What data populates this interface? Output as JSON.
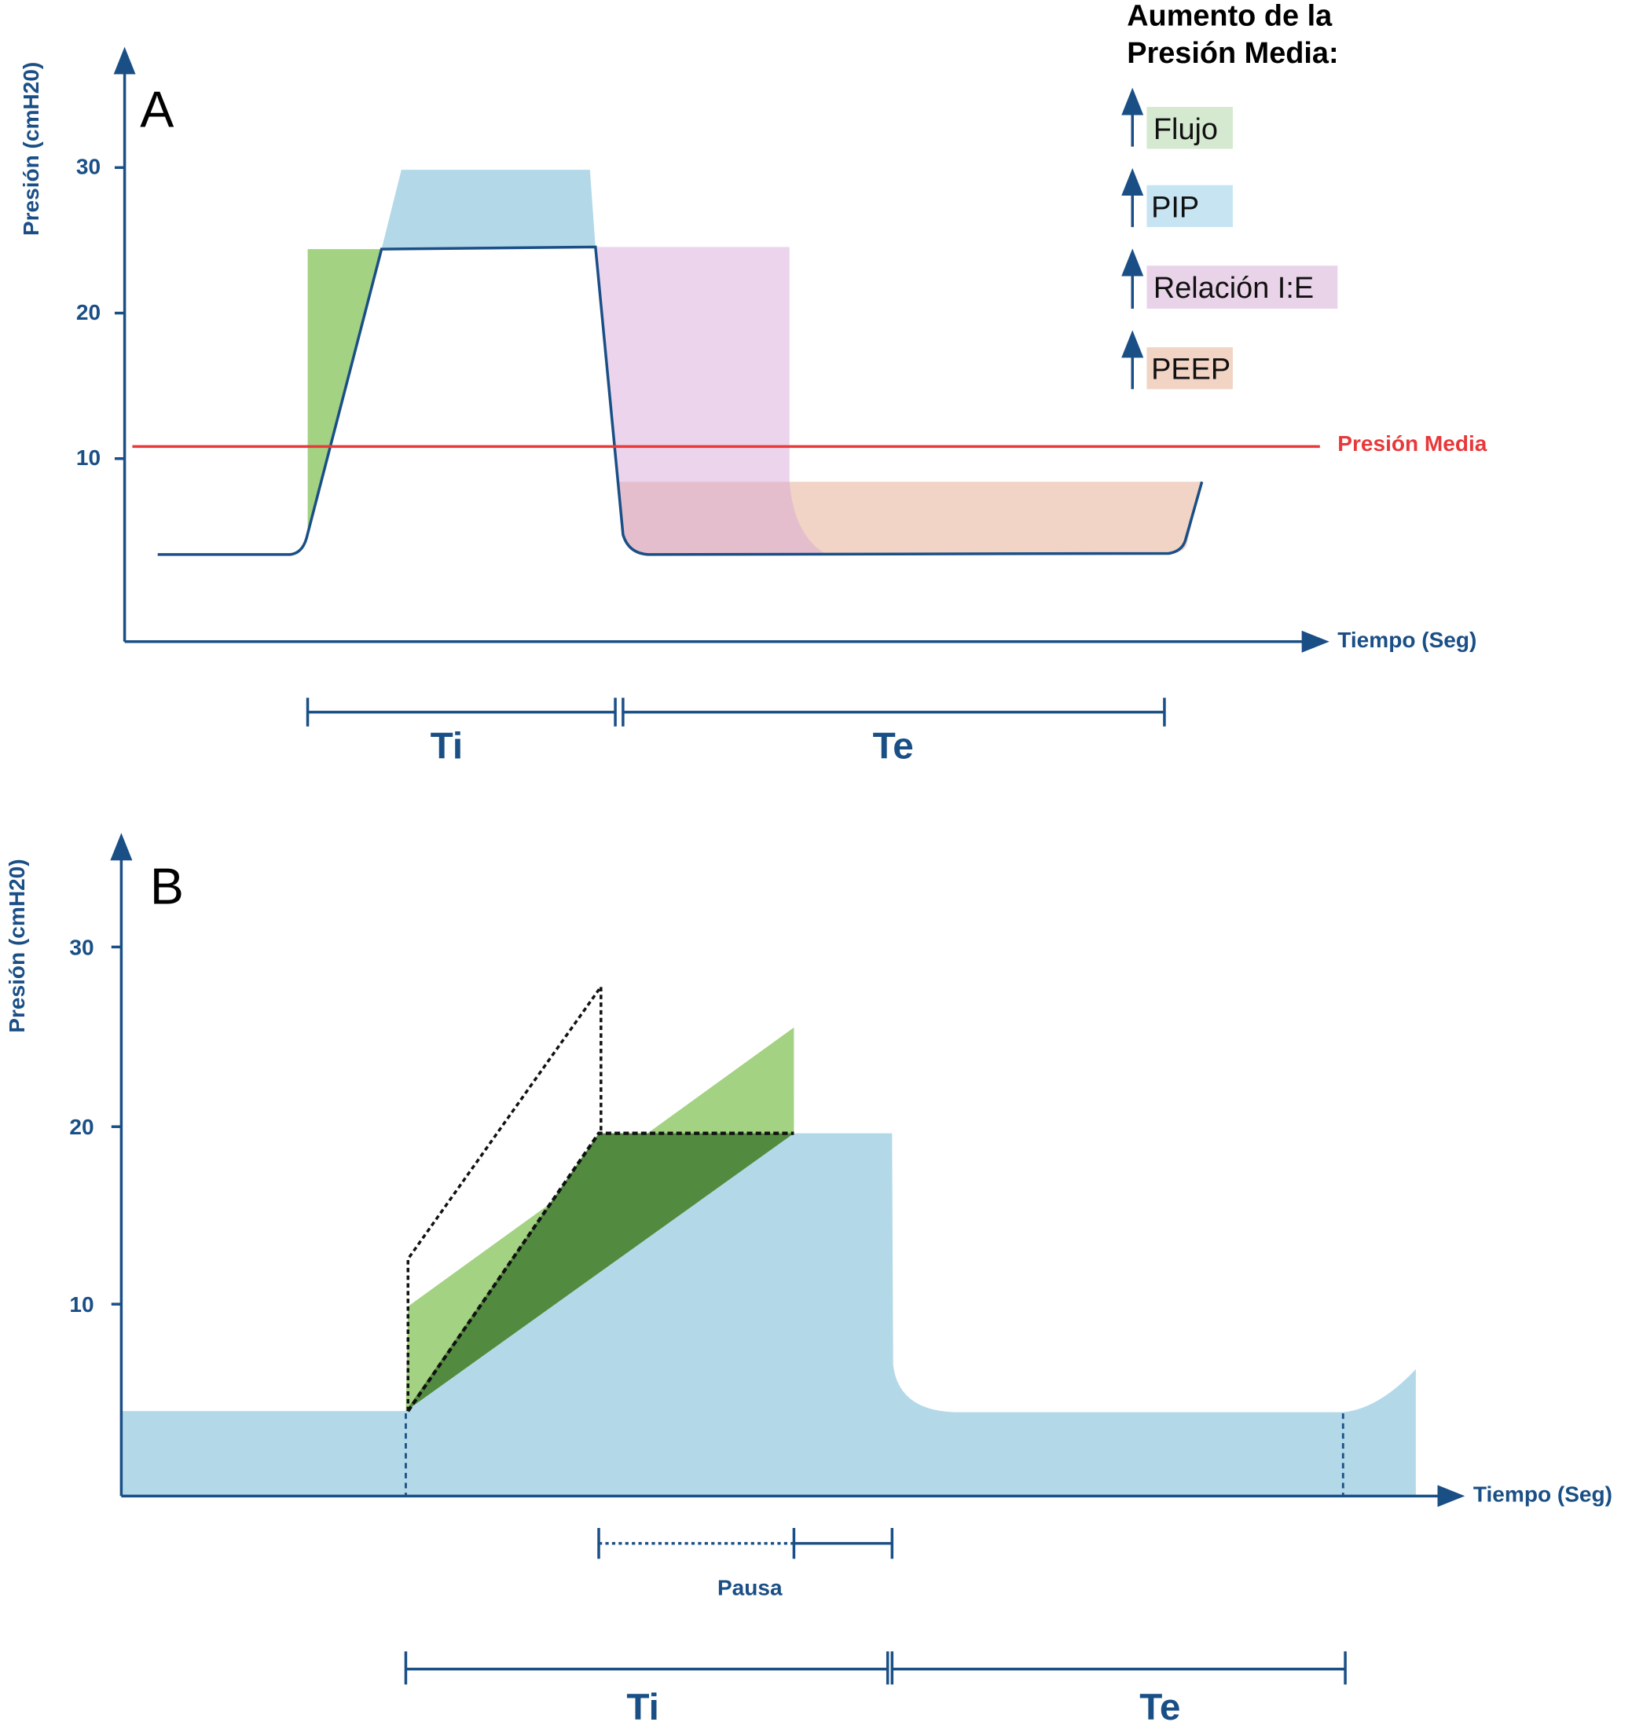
{
  "panel_a": {
    "label": "A",
    "y_axis_label": "Presión (cmH20)",
    "x_axis_label": "Tiempo (Seg)",
    "y_ticks": [
      "30",
      "20",
      "10"
    ],
    "mean_pressure_label": "Presión Media",
    "legend_title_line1": "Aumento de la",
    "legend_title_line2": "Presión Media:",
    "legend": [
      {
        "label": "Flujo",
        "color": "#d5e8d0"
      },
      {
        "label": "PIP",
        "color": "#c6e4f2"
      },
      {
        "label": "Relación I:E",
        "color": "#e8d3e8"
      },
      {
        "label": "PEEP",
        "color": "#f2d4c5"
      }
    ],
    "ti_label": "Ti",
    "te_label": "Te",
    "colors": {
      "axis": "#1a4f86",
      "mean_line": "#e8393a",
      "flow": "#a3d283",
      "pip": "#b3d9e9",
      "ie": "#e8d3e8",
      "peep": "#f1d4c5"
    }
  },
  "panel_b": {
    "label": "B",
    "y_axis_label": "Presión (cmH20)",
    "x_axis_label": "Tiempo (Seg)",
    "y_ticks": [
      "30",
      "20",
      "10"
    ],
    "pause_label": "Pausa",
    "ti_label": "Ti",
    "te_label": "Te",
    "colors": {
      "fill": "#b3d9e9",
      "light_green": "#a3d283",
      "dark_green": "#528a3f"
    }
  }
}
